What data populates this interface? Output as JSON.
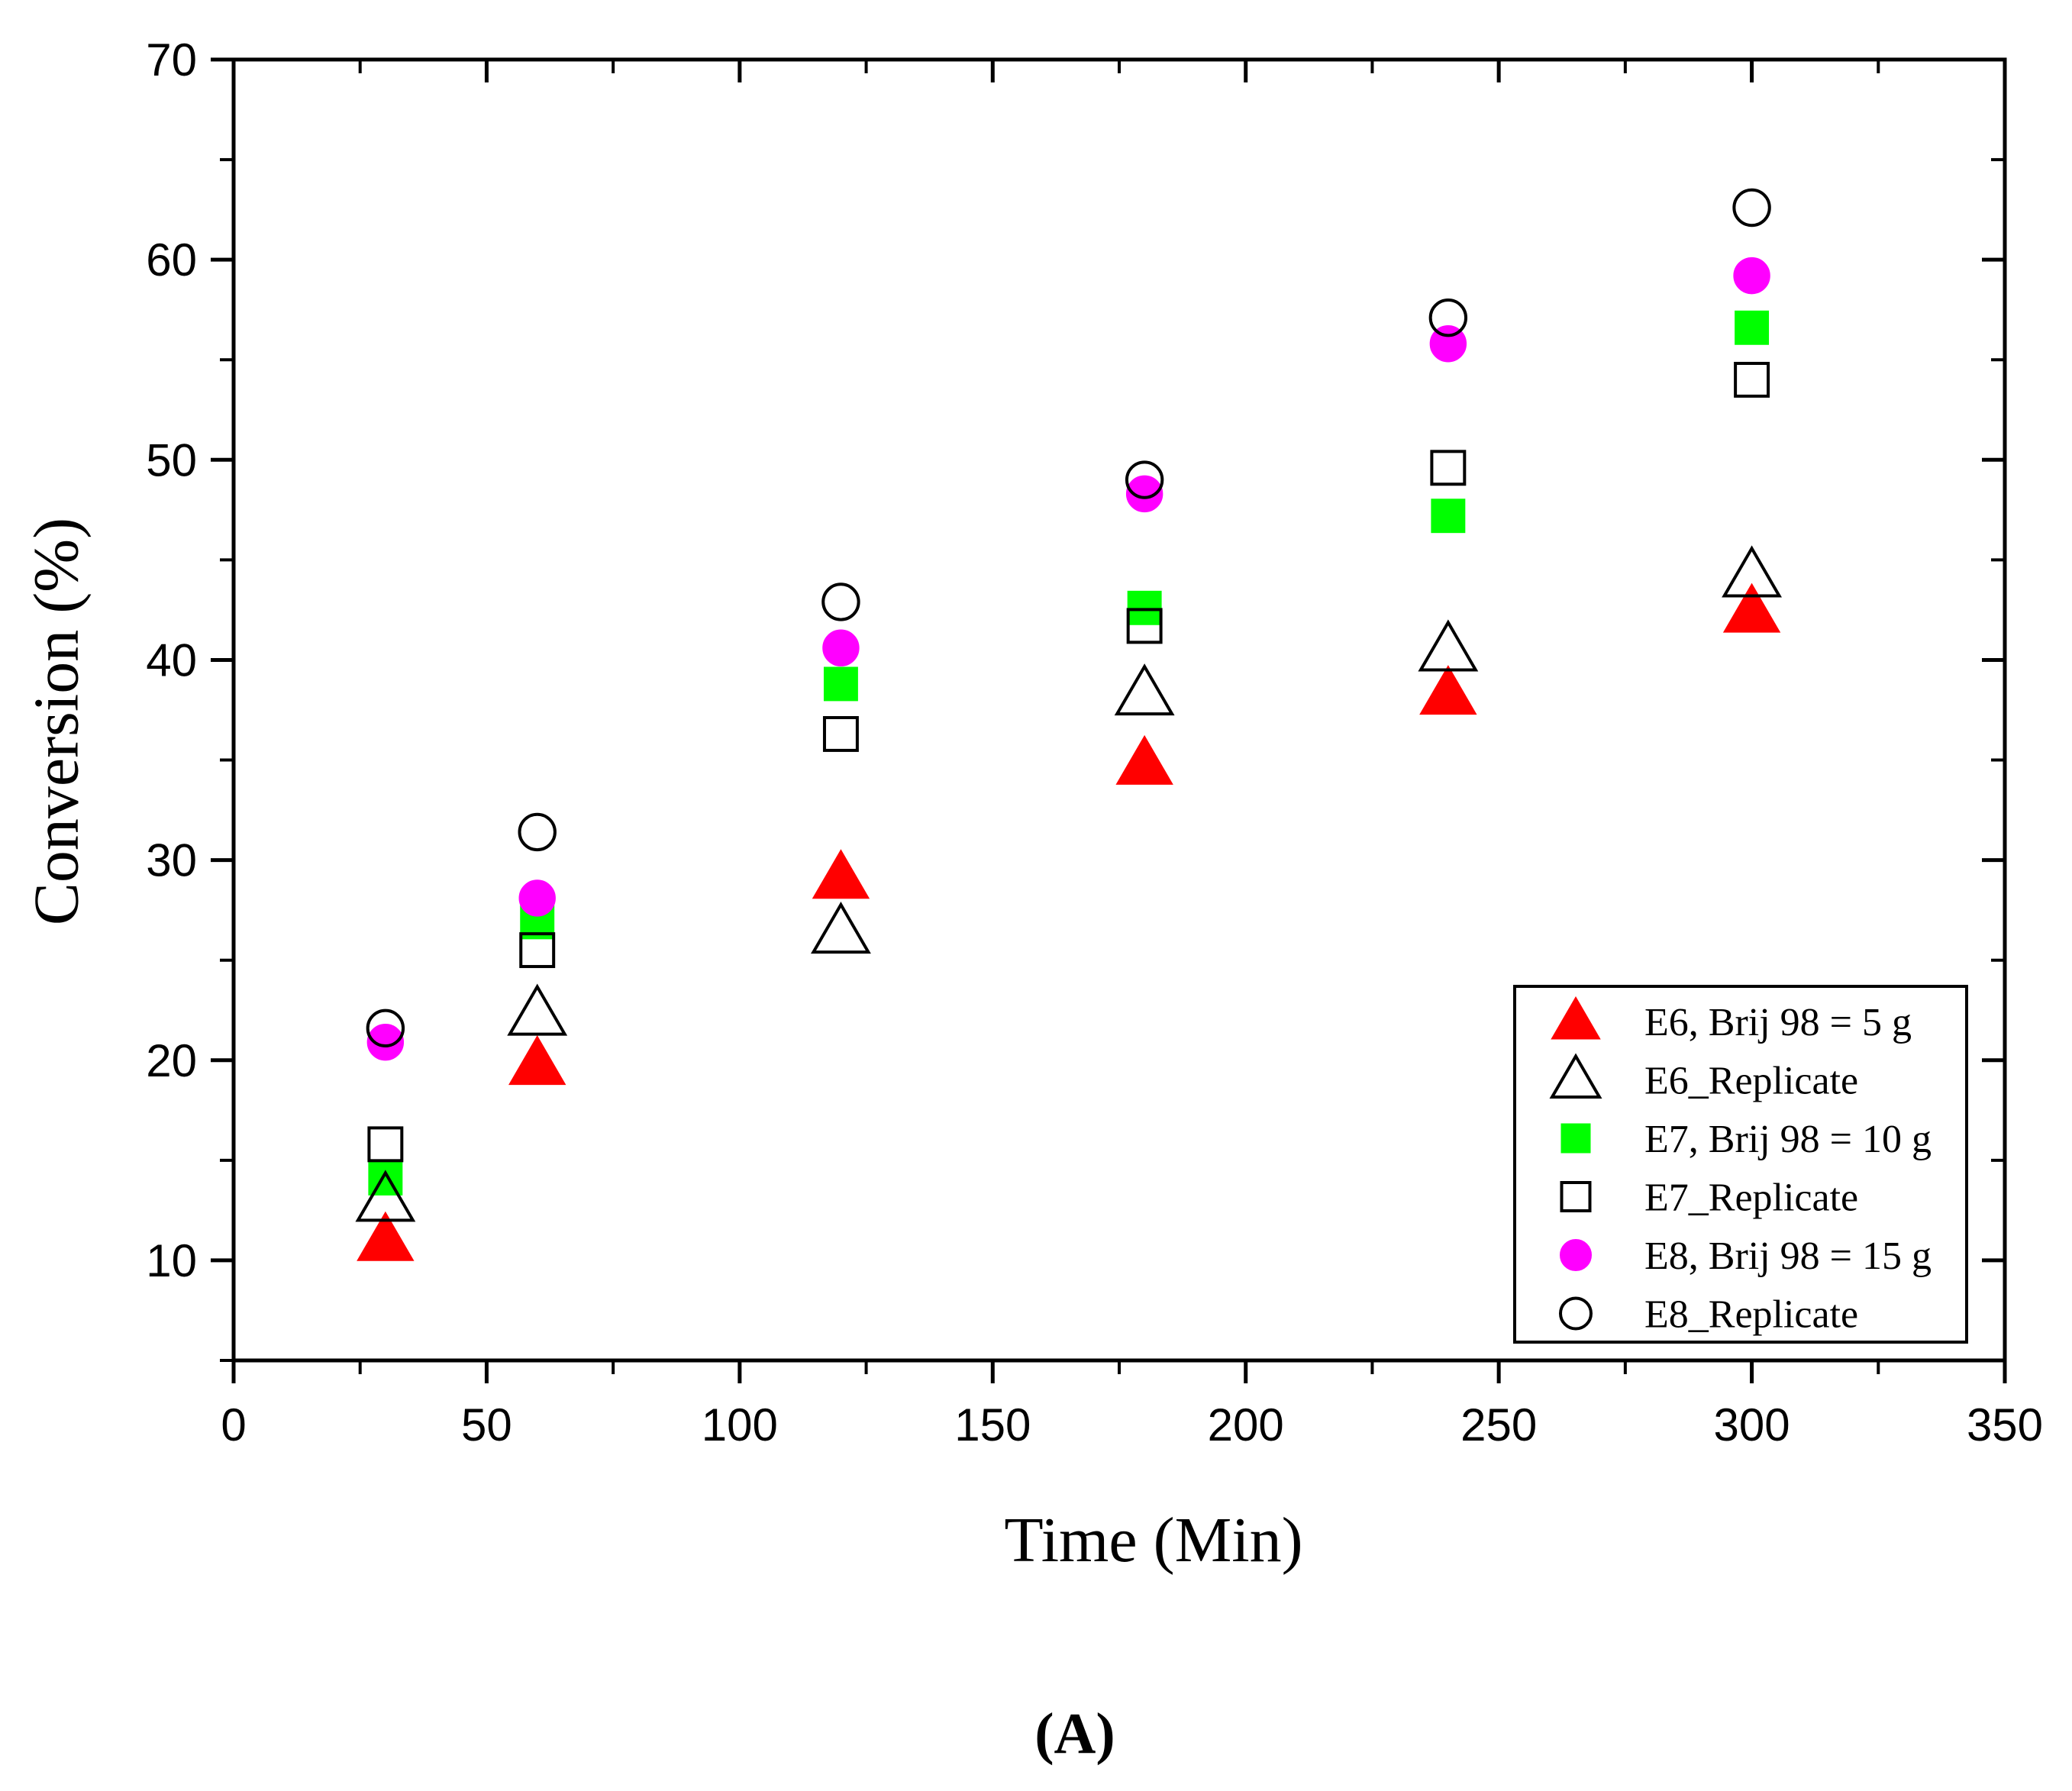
{
  "chart_data": {
    "type": "scatter",
    "panel_label": "(A)",
    "title": "",
    "xlabel": "Time (Min)",
    "ylabel": "Conversion (%)",
    "xlim": [
      0,
      350
    ],
    "ylim": [
      5,
      70
    ],
    "xticks": [
      0,
      50,
      100,
      150,
      200,
      250,
      300,
      350
    ],
    "yticks": [
      10,
      20,
      30,
      40,
      50,
      60,
      70
    ],
    "x_tick_labels": [
      "0",
      "50",
      "100",
      "150",
      "200",
      "250",
      "300",
      "350"
    ],
    "y_tick_labels": [
      "10",
      "20",
      "30",
      "40",
      "50",
      "60",
      "70"
    ],
    "grid": false,
    "legend_position": "bottom-right",
    "series": [
      {
        "name": "E6, Brij 98 = 5 g",
        "marker": "triangle",
        "filled": true,
        "color": "#ff0000",
        "x": [
          30,
          60,
          120,
          180,
          240,
          300
        ],
        "y": [
          11.0,
          19.8,
          29.1,
          34.8,
          38.3,
          42.4
        ]
      },
      {
        "name": "E6_Replicate",
        "marker": "triangle",
        "filled": false,
        "color": "#000000",
        "x": [
          30,
          60,
          120,
          180,
          240,
          300
        ],
        "y": [
          13.0,
          22.3,
          26.4,
          38.3,
          40.5,
          44.2
        ]
      },
      {
        "name": "E7, Brij 98 = 10 g",
        "marker": "square",
        "filled": true,
        "color": "#00ff00",
        "x": [
          30,
          60,
          120,
          180,
          240,
          300
        ],
        "y": [
          14.1,
          26.9,
          38.8,
          42.6,
          47.2,
          56.6
        ]
      },
      {
        "name": "E7_Replicate",
        "marker": "square",
        "filled": false,
        "color": "#000000",
        "x": [
          30,
          60,
          120,
          180,
          240,
          300
        ],
        "y": [
          15.8,
          25.5,
          36.3,
          41.7,
          49.6,
          54.0
        ]
      },
      {
        "name": "E8, Brij 98 = 15 g",
        "marker": "circle",
        "filled": true,
        "color": "#ff00ff",
        "x": [
          30,
          60,
          120,
          180,
          240,
          300
        ],
        "y": [
          20.9,
          28.1,
          40.6,
          48.3,
          55.8,
          59.2
        ]
      },
      {
        "name": "E8_Replicate",
        "marker": "circle",
        "filled": false,
        "color": "#000000",
        "x": [
          30,
          60,
          120,
          180,
          240,
          300
        ],
        "y": [
          21.6,
          31.4,
          42.9,
          49.0,
          57.1,
          62.6
        ]
      }
    ]
  }
}
